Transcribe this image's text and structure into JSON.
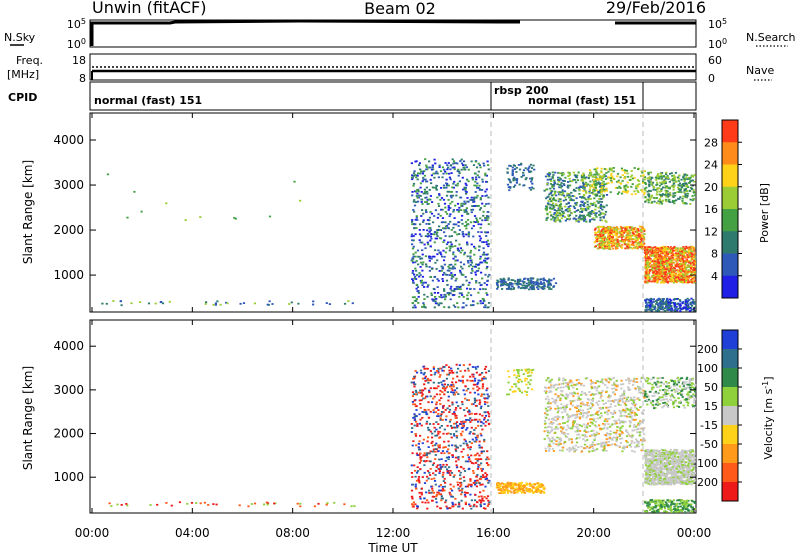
{
  "header": {
    "station": "Unwin (fitACF)",
    "beam": "Beam 02",
    "date": "29/Feb/2016"
  },
  "panels": {
    "sky": {
      "left_label": "N.Sky",
      "right_label": "N.Search",
      "ticks_left": [
        "10^5",
        "10^0"
      ],
      "ticks_right": [
        "10^5",
        "10^0"
      ]
    },
    "freq": {
      "left_label_1": "Freq.",
      "left_label_2": "[MHz]",
      "right_label": "Nave",
      "ticks_left": [
        "18",
        "8"
      ],
      "ticks_right": [
        "60",
        "0"
      ]
    },
    "cpid": {
      "label": "CPID",
      "segments": [
        "normal (fast) 151",
        "rbsp 200",
        "normal (fast) 151"
      ]
    }
  },
  "chart_data": [
    {
      "type": "heatmap",
      "title": "",
      "parameter": "Power",
      "xlabel": "",
      "ylabel": "Slant Range [km]",
      "ylim": [
        180,
        4600
      ],
      "yticks": [
        "1000",
        "2000",
        "3000",
        "4000"
      ],
      "colorbar": {
        "label": "Power [dB]",
        "ticks": [
          "4",
          "8",
          "12",
          "16",
          "20",
          "24",
          "28"
        ],
        "range": [
          0,
          32
        ],
        "colors": [
          "#1f1fe6",
          "#2f59b8",
          "#2f7a6e",
          "#43a043",
          "#9ccc35",
          "#ffd21a",
          "#ff8c1a",
          "#ff3b1a"
        ]
      },
      "regions": [
        {
          "x_start": "00:00",
          "x_end": "04:00",
          "range": [
            350,
            450
          ],
          "level": "scattered low"
        },
        {
          "x_start": "12:40",
          "x_end": "15:50",
          "range": [
            300,
            3600
          ],
          "level": "striated weak-moderate"
        },
        {
          "x_start": "16:10",
          "x_end": "18:00",
          "range": [
            700,
            950
          ],
          "level": "weak"
        },
        {
          "x_start": "18:00",
          "x_end": "22:00",
          "range": [
            1500,
            3400
          ],
          "level": "moderate-strong"
        },
        {
          "x_start": "22:00",
          "x_end": "24:00",
          "range": [
            800,
            1700
          ],
          "level": "strong"
        }
      ]
    },
    {
      "type": "heatmap",
      "title": "",
      "parameter": "Velocity",
      "xlabel": "Time UT",
      "ylabel": "Slant Range [km]",
      "ylim": [
        180,
        4600
      ],
      "yticks": [
        "1000",
        "2000",
        "3000",
        "4000"
      ],
      "xticks": [
        "00:00",
        "04:00",
        "08:00",
        "12:00",
        "16:00",
        "20:00",
        "00:00"
      ],
      "colorbar": {
        "label": "Velocity [m s^-1]",
        "ticks": [
          "200",
          "100",
          "50",
          "15",
          "-15",
          "-50",
          "-100",
          "-200"
        ],
        "colors": [
          "#1f3fd6",
          "#2e6f8e",
          "#2f8a4a",
          "#8fd13a",
          "#c8c8c8",
          "#ffd21a",
          "#ff9a1a",
          "#ff5a1a",
          "#ee1a1a"
        ]
      },
      "regions": [
        {
          "x_start": "12:40",
          "x_end": "15:50",
          "range": [
            300,
            3600
          ],
          "level": "mixed red/blue"
        },
        {
          "x_start": "16:10",
          "x_end": "18:00",
          "range": [
            650,
            900
          ],
          "level": "orange"
        },
        {
          "x_start": "18:00",
          "x_end": "22:00",
          "range": [
            1500,
            3400
          ],
          "level": "grey/green"
        },
        {
          "x_start": "22:00",
          "x_end": "24:00",
          "range": [
            800,
            1700
          ],
          "level": "grey"
        }
      ]
    }
  ]
}
